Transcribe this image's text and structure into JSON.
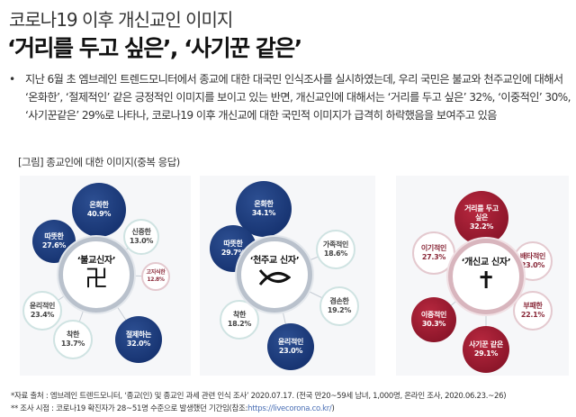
{
  "header": {
    "subtitle": "코로나19 이후 개신교인 이미지",
    "title": "‘거리를 두고 싶은’, ‘사기꾼 같은’"
  },
  "bullet": "지난 6월 초 엠브레인 트렌드모니터에서 종교에 대한 대국민 인식조사를 실시하였는데, 우리 국민은 불교와 천주교인에 대해서 ‘온화한’, ‘절제적인’ 같은 긍정적인 이미지를 보이고 있는 반면, 개신교인에 대해서는 ‘거리를 두고 싶은’ 32%, ‘이중적인’ 30%, ‘사기꾼같은’  29%로 나타나, 코로나19 이후 개신교에 대한 국민적 이미지가 급격히 하락했음을 보여주고 있음",
  "figure_caption": "[그림] 종교인에 대한 이미지(중복 응답)",
  "panels": [
    {
      "center": "‘불교신자’",
      "symbol": "卍",
      "items": [
        {
          "label": "온화한",
          "value": "40.9%"
        },
        {
          "label": "따뜻한",
          "value": "27.6%"
        },
        {
          "label": "신중한",
          "value": "13.0%"
        },
        {
          "label": "고지식한",
          "value": "12.8%"
        },
        {
          "label": "윤리적인",
          "value": "23.4%"
        },
        {
          "label": "착한",
          "value": "13.7%"
        },
        {
          "label": "절제하는",
          "value": "32.0%"
        }
      ]
    },
    {
      "center": "‘천주교 신자’",
      "symbol": "ichthys",
      "items": [
        {
          "label": "온화한",
          "value": "34.1%"
        },
        {
          "label": "따뜻한",
          "value": "29.7%"
        },
        {
          "label": "가족적인",
          "value": "18.6%"
        },
        {
          "label": "겸손한",
          "value": "19.2%"
        },
        {
          "label": "착한",
          "value": "18.2%"
        },
        {
          "label": "윤리적인",
          "value": "23.0%"
        }
      ]
    },
    {
      "center": "‘개신교 신자’",
      "symbol": "✝",
      "items": [
        {
          "label": "거리를 두고 싶은",
          "value": "32.2%"
        },
        {
          "label": "이기적인",
          "value": "27.3%"
        },
        {
          "label": "배타적인",
          "value": "23.0%"
        },
        {
          "label": "부패한",
          "value": "22.1%"
        },
        {
          "label": "이중적인",
          "value": "30.3%"
        },
        {
          "label": "사기꾼 같은",
          "value": "29.1%"
        }
      ]
    }
  ],
  "footnotes": {
    "source": "*자료 출처 : 엠브레인 트렌드모니터, ‘종교(인) 및 종교인 과세 관련 인식 조사’ 2020.07.17. (전국 만20~59세 남녀, 1,000명, 온라인 조사, 2020.06.23.~26)",
    "period": "** 조사 시점 : 코로나19 확진자가 28~51명 수준으로 발생했던 기간임(참조:",
    "link": "https://livecorona.co.kr/",
    "close": ")"
  }
}
